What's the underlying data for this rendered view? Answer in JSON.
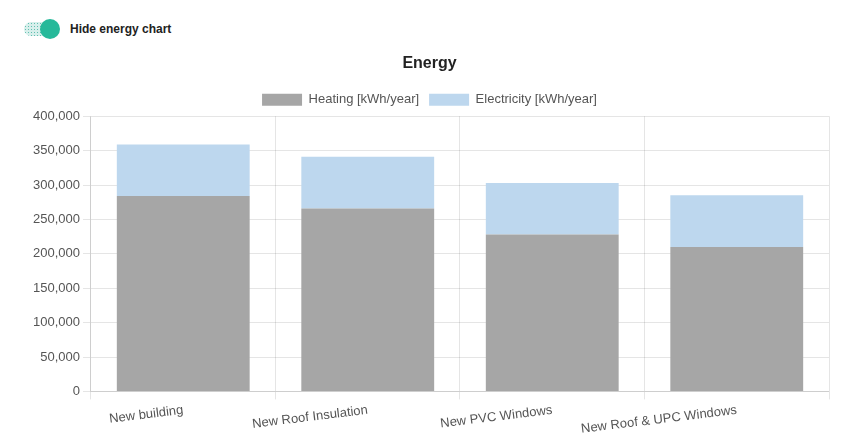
{
  "toggle": {
    "label": "Hide energy chart"
  },
  "chart_data": {
    "type": "bar",
    "title": "Energy",
    "categories": [
      "New building",
      "New Roof Insulation",
      "New PVC Windows",
      "New Roof & UPC Windows"
    ],
    "series": [
      {
        "name": "Heating [kWh/year]",
        "color": "#a6a6a6",
        "values": [
          284000,
          266000,
          228000,
          210000
        ]
      },
      {
        "name": "Electricity [kWh/year]",
        "color": "#bdd7ee",
        "values": [
          75000,
          75000,
          75000,
          75000
        ]
      }
    ],
    "stacked": true,
    "ylim": [
      0,
      400000
    ],
    "yticks": [
      0,
      {
        "value": 50000,
        "label": "50,000"
      },
      {
        "value": 100000,
        "label": "100,000"
      },
      {
        "value": 150000,
        "label": "150,000"
      },
      {
        "value": 200000,
        "label": "200,000"
      },
      {
        "value": 250000,
        "label": "250,000"
      },
      {
        "value": 300000,
        "label": "300,000"
      },
      {
        "value": 350000,
        "label": "350,000"
      },
      {
        "value": 400000,
        "label": "400,000"
      }
    ],
    "grid": true,
    "legend": "top"
  }
}
